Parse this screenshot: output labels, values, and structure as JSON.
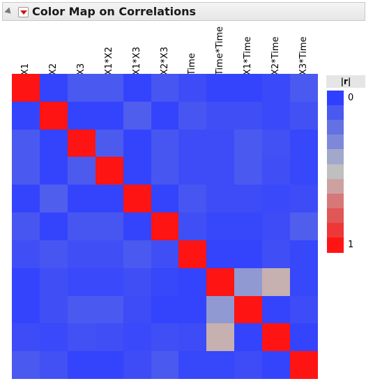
{
  "title": "Color Map on Correlations",
  "icons": {
    "disclosure": "collapse-triangle-icon",
    "menu": "red-triangle-menu-icon"
  },
  "chart_data": {
    "type": "heatmap",
    "title": "Color Map on Correlations",
    "variables": [
      "X1",
      "X2",
      "X3",
      "X1*X2",
      "X1*X3",
      "X2*X3",
      "Time",
      "Time*Time",
      "X1*Time",
      "X2*Time",
      "X3*Time"
    ],
    "matrix": [
      [
        1.0,
        0.02,
        0.1,
        0.1,
        0.02,
        0.09,
        0.05,
        0.02,
        0.02,
        0.04,
        0.1
      ],
      [
        0.02,
        1.0,
        0.02,
        0.02,
        0.12,
        0.02,
        0.09,
        0.06,
        0.06,
        0.04,
        0.07
      ],
      [
        0.1,
        0.02,
        1.0,
        0.11,
        0.02,
        0.09,
        0.05,
        0.05,
        0.1,
        0.07,
        0.03
      ],
      [
        0.1,
        0.02,
        0.11,
        1.0,
        0.02,
        0.09,
        0.05,
        0.05,
        0.1,
        0.06,
        0.03
      ],
      [
        0.02,
        0.12,
        0.02,
        0.02,
        1.0,
        0.02,
        0.09,
        0.05,
        0.05,
        0.04,
        0.05
      ],
      [
        0.09,
        0.02,
        0.09,
        0.09,
        0.02,
        1.0,
        0.06,
        0.03,
        0.03,
        0.05,
        0.12
      ],
      [
        0.06,
        0.09,
        0.06,
        0.06,
        0.1,
        0.06,
        1.0,
        0.02,
        0.02,
        0.06,
        0.03
      ],
      [
        0.02,
        0.06,
        0.04,
        0.04,
        0.06,
        0.03,
        0.02,
        1.0,
        0.35,
        0.55,
        0.03
      ],
      [
        0.02,
        0.06,
        0.1,
        0.1,
        0.05,
        0.02,
        0.02,
        0.35,
        1.0,
        0.02,
        0.05
      ],
      [
        0.05,
        0.04,
        0.07,
        0.06,
        0.04,
        0.06,
        0.05,
        0.55,
        0.02,
        1.0,
        0.02
      ],
      [
        0.1,
        0.07,
        0.02,
        0.02,
        0.05,
        0.1,
        0.03,
        0.03,
        0.05,
        0.02,
        1.0
      ]
    ],
    "legend": {
      "title": "|r|",
      "min_label": "0",
      "max_label": "1",
      "colors": [
        "#2F3FFF",
        "#4A59EF",
        "#6271E3",
        "#7D89D8",
        "#A2A8CB",
        "#BFBFBF",
        "#CEA1A1",
        "#D67878",
        "#E15656",
        "#EE3737",
        "#FF1414"
      ]
    }
  }
}
